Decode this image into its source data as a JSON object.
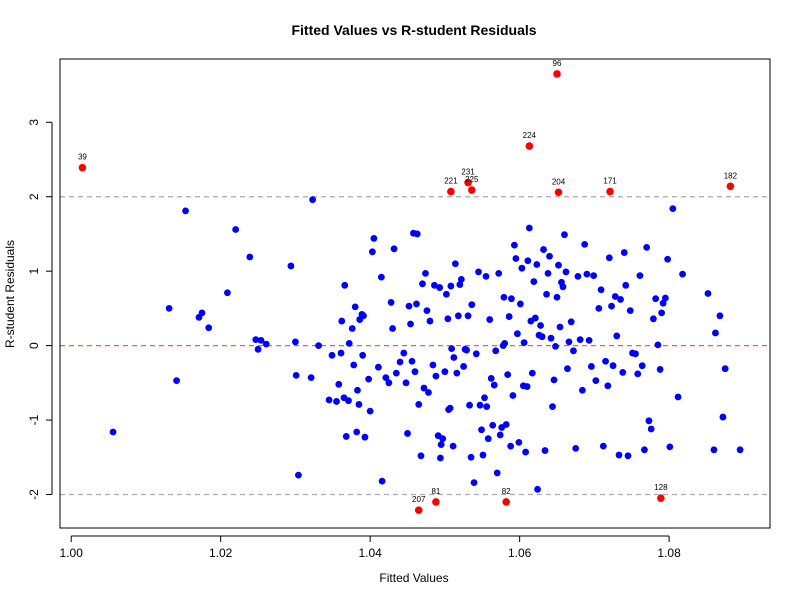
{
  "chart_data": {
    "type": "scatter",
    "title": "Fitted Values vs R-student Residuals",
    "xlabel": "Fitted Values",
    "ylabel": "R-student Residuals",
    "xlim": [
      0.9985,
      1.0935
    ],
    "ylim": [
      -2.45,
      3.85
    ],
    "xticks": [
      1.0,
      1.02,
      1.04,
      1.06,
      1.08
    ],
    "xtick_labels": [
      "1.00",
      "1.02",
      "1.04",
      "1.06",
      "1.08"
    ],
    "yticks": [
      -2,
      -1,
      0,
      1,
      2,
      3
    ],
    "ytick_labels": [
      "-2",
      "-1",
      "0",
      "1",
      "2",
      "3"
    ],
    "reference_lines": [
      {
        "y": 2,
        "color": "#aaaaaa",
        "style": "dashed"
      },
      {
        "y": -2,
        "color": "#aaaaaa",
        "style": "dashed"
      },
      {
        "y": 0,
        "color": "#ff5555",
        "style": "dashed"
      }
    ],
    "colors": {
      "normal": "#0000ff",
      "outlier": "#ff0000"
    },
    "outliers": [
      {
        "label": "39",
        "x": 1.0015,
        "y": 2.39
      },
      {
        "label": "96",
        "x": 1.065,
        "y": 3.65
      },
      {
        "label": "224",
        "x": 1.0613,
        "y": 2.68
      },
      {
        "label": "231",
        "x": 1.0531,
        "y": 2.19
      },
      {
        "label": "221",
        "x": 1.0508,
        "y": 2.07
      },
      {
        "label": "225",
        "x": 1.0536,
        "y": 2.09
      },
      {
        "label": "204",
        "x": 1.0652,
        "y": 2.06
      },
      {
        "label": "171",
        "x": 1.0721,
        "y": 2.07
      },
      {
        "label": "182",
        "x": 1.0882,
        "y": 2.14
      },
      {
        "label": "81",
        "x": 1.0488,
        "y": -2.1
      },
      {
        "label": "82",
        "x": 1.0582,
        "y": -2.1
      },
      {
        "label": "207",
        "x": 1.0465,
        "y": -2.21
      },
      {
        "label": "128",
        "x": 1.0789,
        "y": -2.05
      }
    ],
    "points": [
      [
        1.0056,
        -1.16
      ],
      [
        1.0131,
        0.5
      ],
      [
        1.0141,
        -0.47
      ],
      [
        1.0153,
        1.81
      ],
      [
        1.0171,
        0.38
      ],
      [
        1.0175,
        0.44
      ],
      [
        1.0184,
        0.24
      ],
      [
        1.0209,
        0.71
      ],
      [
        1.022,
        1.56
      ],
      [
        1.0239,
        1.19
      ],
      [
        1.0247,
        0.08
      ],
      [
        1.025,
        -0.05
      ],
      [
        1.0254,
        0.07
      ],
      [
        1.0261,
        0.02
      ],
      [
        1.0294,
        1.07
      ],
      [
        1.03,
        0.05
      ],
      [
        1.0301,
        -0.4
      ],
      [
        1.0304,
        -1.74
      ],
      [
        1.0321,
        -0.43
      ],
      [
        1.0323,
        1.96
      ],
      [
        1.0331,
        0.0
      ],
      [
        1.0345,
        -0.73
      ],
      [
        1.0349,
        -0.13
      ],
      [
        1.0355,
        -0.75
      ],
      [
        1.0358,
        -0.52
      ],
      [
        1.0361,
        -0.1
      ],
      [
        1.0362,
        0.33
      ],
      [
        1.0365,
        -0.7
      ],
      [
        1.0366,
        0.81
      ],
      [
        1.0368,
        -1.22
      ],
      [
        1.0371,
        -0.74
      ],
      [
        1.0372,
        0.03
      ],
      [
        1.0376,
        0.23
      ],
      [
        1.0378,
        -0.26
      ],
      [
        1.038,
        0.52
      ],
      [
        1.0382,
        -1.16
      ],
      [
        1.0383,
        -0.6
      ],
      [
        1.0385,
        -0.79
      ],
      [
        1.0386,
        0.35
      ],
      [
        1.0389,
        0.42
      ],
      [
        1.039,
        -0.13
      ],
      [
        1.0391,
        0.4
      ],
      [
        1.0393,
        -1.23
      ],
      [
        1.0398,
        -0.45
      ],
      [
        1.04,
        -0.88
      ],
      [
        1.0403,
        1.26
      ],
      [
        1.0405,
        1.44
      ],
      [
        1.0411,
        -0.29
      ],
      [
        1.0415,
        0.92
      ],
      [
        1.0416,
        -1.82
      ],
      [
        1.0421,
        -0.43
      ],
      [
        1.0425,
        -0.5
      ],
      [
        1.0428,
        0.58
      ],
      [
        1.043,
        0.23
      ],
      [
        1.0432,
        1.3
      ],
      [
        1.0435,
        -0.37
      ],
      [
        1.044,
        -0.22
      ],
      [
        1.0445,
        -0.1
      ],
      [
        1.0448,
        -0.5
      ],
      [
        1.045,
        -1.18
      ],
      [
        1.0452,
        0.53
      ],
      [
        1.0454,
        0.29
      ],
      [
        1.0456,
        -0.21
      ],
      [
        1.0458,
        1.51
      ],
      [
        1.046,
        -0.35
      ],
      [
        1.0462,
        0.56
      ],
      [
        1.0463,
        1.5
      ],
      [
        1.0465,
        -0.79
      ],
      [
        1.0468,
        -1.48
      ],
      [
        1.047,
        0.83
      ],
      [
        1.0472,
        -0.57
      ],
      [
        1.0474,
        0.97
      ],
      [
        1.0476,
        0.47
      ],
      [
        1.0478,
        -0.63
      ],
      [
        1.048,
        0.33
      ],
      [
        1.0484,
        -0.26
      ],
      [
        1.0486,
        0.81
      ],
      [
        1.0488,
        -0.41
      ],
      [
        1.0491,
        -1.21
      ],
      [
        1.0493,
        0.78
      ],
      [
        1.0494,
        -1.51
      ],
      [
        1.0495,
        -1.33
      ],
      [
        1.0497,
        -1.25
      ],
      [
        1.05,
        -0.35
      ],
      [
        1.0502,
        0.69
      ],
      [
        1.0504,
        0.36
      ],
      [
        1.0505,
        -0.86
      ],
      [
        1.0507,
        -0.84
      ],
      [
        1.0508,
        0.8
      ],
      [
        1.0509,
        -0.04
      ],
      [
        1.0511,
        -1.35
      ],
      [
        1.0512,
        -0.16
      ],
      [
        1.0514,
        1.1
      ],
      [
        1.0516,
        -0.37
      ],
      [
        1.0518,
        0.4
      ],
      [
        1.052,
        0.82
      ],
      [
        1.0522,
        0.89
      ],
      [
        1.0525,
        -0.28
      ],
      [
        1.0527,
        -0.05
      ],
      [
        1.0529,
        -0.06
      ],
      [
        1.0531,
        0.4
      ],
      [
        1.0533,
        -0.8
      ],
      [
        1.0535,
        -1.5
      ],
      [
        1.0536,
        0.55
      ],
      [
        1.0539,
        -1.84
      ],
      [
        1.0542,
        -0.11
      ],
      [
        1.0545,
        0.99
      ],
      [
        1.0547,
        -0.8
      ],
      [
        1.0549,
        -1.13
      ],
      [
        1.0551,
        -1.47
      ],
      [
        1.0553,
        -0.7
      ],
      [
        1.0555,
        0.93
      ],
      [
        1.0556,
        -0.82
      ],
      [
        1.0558,
        -1.25
      ],
      [
        1.056,
        0.35
      ],
      [
        1.0562,
        -0.44
      ],
      [
        1.0564,
        -1.07
      ],
      [
        1.0566,
        -0.53
      ],
      [
        1.0568,
        -0.07
      ],
      [
        1.057,
        -1.71
      ],
      [
        1.0572,
        0.97
      ],
      [
        1.0574,
        -1.2
      ],
      [
        1.0576,
        -1.1
      ],
      [
        1.0578,
        0.0
      ],
      [
        1.0579,
        0.65
      ],
      [
        1.058,
        0.03
      ],
      [
        1.0582,
        -1.06
      ],
      [
        1.0584,
        -0.39
      ],
      [
        1.0586,
        0.39
      ],
      [
        1.0588,
        -1.35
      ],
      [
        1.0589,
        0.63
      ],
      [
        1.0591,
        -0.67
      ],
      [
        1.0593,
        1.35
      ],
      [
        1.0595,
        1.17
      ],
      [
        1.0597,
        0.16
      ],
      [
        1.0599,
        -1.3
      ],
      [
        1.0601,
        0.56
      ],
      [
        1.0603,
        1.04
      ],
      [
        1.0605,
        -0.54
      ],
      [
        1.0606,
        0.04
      ],
      [
        1.0608,
        -1.43
      ],
      [
        1.061,
        -0.55
      ],
      [
        1.0611,
        1.14
      ],
      [
        1.0613,
        1.58
      ],
      [
        1.0615,
        0.33
      ],
      [
        1.0617,
        -0.37
      ],
      [
        1.0619,
        0.86
      ],
      [
        1.0621,
        0.37
      ],
      [
        1.0623,
        1.09
      ],
      [
        1.0624,
        -1.93
      ],
      [
        1.0626,
        0.14
      ],
      [
        1.0628,
        0.27
      ],
      [
        1.063,
        0.12
      ],
      [
        1.0632,
        1.29
      ],
      [
        1.0634,
        -1.41
      ],
      [
        1.0636,
        0.69
      ],
      [
        1.0638,
        0.97
      ],
      [
        1.064,
        1.2
      ],
      [
        1.0642,
        0.1
      ],
      [
        1.0644,
        -0.82
      ],
      [
        1.0646,
        -0.46
      ],
      [
        1.0648,
        -0.01
      ],
      [
        1.065,
        0.65
      ],
      [
        1.0652,
        1.08
      ],
      [
        1.0654,
        0.25
      ],
      [
        1.0656,
        0.85
      ],
      [
        1.0658,
        0.79
      ],
      [
        1.066,
        1.49
      ],
      [
        1.0662,
        0.99
      ],
      [
        1.0664,
        -0.31
      ],
      [
        1.0666,
        0.05
      ],
      [
        1.0669,
        0.32
      ],
      [
        1.0672,
        -0.07
      ],
      [
        1.0675,
        -1.38
      ],
      [
        1.0678,
        0.93
      ],
      [
        1.0681,
        0.08
      ],
      [
        1.0684,
        -0.6
      ],
      [
        1.0687,
        1.36
      ],
      [
        1.069,
        0.96
      ],
      [
        1.0693,
        0.07
      ],
      [
        1.0696,
        -0.28
      ],
      [
        1.0699,
        0.94
      ],
      [
        1.0702,
        -0.47
      ],
      [
        1.0706,
        0.5
      ],
      [
        1.0709,
        0.75
      ],
      [
        1.0712,
        -1.35
      ],
      [
        1.0715,
        -0.21
      ],
      [
        1.0718,
        -0.54
      ],
      [
        1.072,
        1.18
      ],
      [
        1.0723,
        0.53
      ],
      [
        1.0725,
        -0.27
      ],
      [
        1.0728,
        0.66
      ],
      [
        1.073,
        0.13
      ],
      [
        1.0733,
        -1.47
      ],
      [
        1.0735,
        0.62
      ],
      [
        1.0738,
        -0.36
      ],
      [
        1.074,
        1.25
      ],
      [
        1.0742,
        0.81
      ],
      [
        1.0745,
        -1.48
      ],
      [
        1.0748,
        0.47
      ],
      [
        1.0751,
        -0.1
      ],
      [
        1.0755,
        -0.11
      ],
      [
        1.0758,
        -0.38
      ],
      [
        1.0761,
        0.94
      ],
      [
        1.0764,
        -0.27
      ],
      [
        1.0767,
        -1.4
      ],
      [
        1.077,
        1.32
      ],
      [
        1.0773,
        -1.01
      ],
      [
        1.0776,
        -1.12
      ],
      [
        1.0779,
        0.36
      ],
      [
        1.0782,
        0.63
      ],
      [
        1.0785,
        0.01
      ],
      [
        1.0788,
        -0.32
      ],
      [
        1.079,
        0.44
      ],
      [
        1.0792,
        0.57
      ],
      [
        1.0795,
        0.64
      ],
      [
        1.0798,
        1.16
      ],
      [
        1.0801,
        -1.36
      ],
      [
        1.0805,
        1.84
      ],
      [
        1.0812,
        -0.69
      ],
      [
        1.0818,
        0.96
      ],
      [
        1.0852,
        0.7
      ],
      [
        1.086,
        -1.4
      ],
      [
        1.0862,
        0.17
      ],
      [
        1.0868,
        0.4
      ],
      [
        1.0872,
        -0.96
      ],
      [
        1.0875,
        -0.31
      ],
      [
        1.0895,
        -1.4
      ]
    ]
  }
}
